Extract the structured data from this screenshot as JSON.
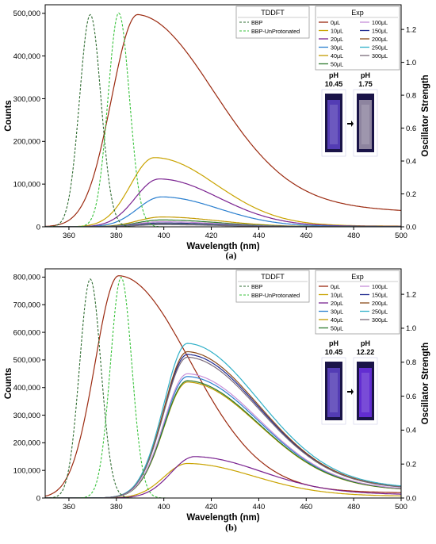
{
  "chart_data": [
    {
      "type": "line",
      "caption": "(a)",
      "xlabel": "Wavelength (nm)",
      "ylabel": "Counts",
      "y2label": "Oscillator Strength",
      "xlim": [
        350,
        500
      ],
      "ylim": [
        0,
        520000
      ],
      "y2lim": [
        0,
        1.35
      ],
      "xticks": [
        360,
        380,
        400,
        420,
        440,
        460,
        480,
        500
      ],
      "yticks": [
        0,
        100000,
        200000,
        300000,
        400000,
        500000
      ],
      "ytick_labels": [
        "0",
        "100,000",
        "200,000",
        "300,000",
        "400,000",
        "500,000"
      ],
      "y2ticks": [
        0,
        0.2,
        0.4,
        0.6,
        0.8,
        1.0,
        1.2
      ],
      "y2tick_labels": [
        "0.0",
        "0.2",
        "0.4",
        "0.6",
        "0.8",
        "1.0",
        "1.2"
      ],
      "legend_tddft_title": "TDDFT",
      "legend_exp_title": "Exp",
      "tddft_series": [
        {
          "name": "BBP",
          "color": "#2e6b30",
          "peak_x": 369,
          "peak_y": 1.29,
          "sigma": 4.5
        },
        {
          "name": "BBP-UnProtonated",
          "color": "#37c23a",
          "peak_x": 381,
          "peak_y": 1.3,
          "sigma": 4.5
        }
      ],
      "exp_series": [
        {
          "name": "0μL",
          "color": "#9b2a10",
          "peak_x": 389,
          "peak_y": 497000,
          "width_left": 11,
          "width_right": 32,
          "tail": 0.15
        },
        {
          "name": "10μL",
          "color": "#c9a300",
          "peak_x": 396,
          "peak_y": 162000,
          "width_left": 10,
          "width_right": 26,
          "tail": 0.02
        },
        {
          "name": "20μL",
          "color": "#7a2290",
          "peak_x": 398,
          "peak_y": 112000,
          "width_left": 10,
          "width_right": 25,
          "tail": 0.02
        },
        {
          "name": "30μL",
          "color": "#2a7fcf",
          "peak_x": 399,
          "peak_y": 70000,
          "width_left": 10,
          "width_right": 24,
          "tail": 0.02
        },
        {
          "name": "40μL",
          "color": "#c39a00",
          "peak_x": 399,
          "peak_y": 23000,
          "width_left": 10,
          "width_right": 24,
          "tail": 0.02
        },
        {
          "name": "50μL",
          "color": "#2d7a2d",
          "peak_x": 399,
          "peak_y": 16000,
          "width_left": 10,
          "width_right": 24,
          "tail": 0.02
        },
        {
          "name": "100μL",
          "color": "#c78fd8",
          "peak_x": 399,
          "peak_y": 12000,
          "width_left": 10,
          "width_right": 24,
          "tail": 0.02
        },
        {
          "name": "150μL",
          "color": "#1f2a8f",
          "peak_x": 399,
          "peak_y": 9000,
          "width_left": 10,
          "width_right": 24,
          "tail": 0.02
        },
        {
          "name": "200μL",
          "color": "#8a4a1a",
          "peak_x": 399,
          "peak_y": 7000,
          "width_left": 10,
          "width_right": 24,
          "tail": 0.02
        },
        {
          "name": "250μL",
          "color": "#30b0c8",
          "peak_x": 399,
          "peak_y": 6000,
          "width_left": 10,
          "width_right": 24,
          "tail": 0.02
        },
        {
          "name": "300μL",
          "color": "#7a6a7a",
          "peak_x": 399,
          "peak_y": 5000,
          "width_left": 10,
          "width_right": 24,
          "tail": 0.02
        }
      ],
      "inset": {
        "left_label": "pH",
        "left_value": "10.45",
        "right_label": "pH",
        "right_value": "1.75",
        "left_glow": "#5a40c0",
        "right_glow": "#9a90a8"
      }
    },
    {
      "type": "line",
      "caption": "(b)",
      "xlabel": "Wavelength (nm)",
      "ylabel": "Counts",
      "y2label": "Oscillator Strength",
      "xlim": [
        350,
        500
      ],
      "ylim": [
        0,
        830000
      ],
      "y2lim": [
        0,
        1.35
      ],
      "xticks": [
        360,
        380,
        400,
        420,
        440,
        460,
        480,
        500
      ],
      "yticks": [
        0,
        100000,
        200000,
        300000,
        400000,
        500000,
        600000,
        700000,
        800000
      ],
      "ytick_labels": [
        "0",
        "100,000",
        "200,000",
        "300,000",
        "400,000",
        "500,000",
        "600,000",
        "700,000",
        "800,000"
      ],
      "y2ticks": [
        0,
        0.2,
        0.4,
        0.6,
        0.8,
        1.0,
        1.2
      ],
      "y2tick_labels": [
        "0.0",
        "0.2",
        "0.4",
        "0.6",
        "0.8",
        "1.0",
        "1.2"
      ],
      "legend_tddft_title": "TDDFT",
      "legend_exp_title": "Exp",
      "tddft_series": [
        {
          "name": "BBP",
          "color": "#2e6b30",
          "peak_x": 369,
          "peak_y": 1.29,
          "sigma": 4.5
        },
        {
          "name": "BBP-UnProtonated",
          "color": "#37c23a",
          "peak_x": 382,
          "peak_y": 1.3,
          "sigma": 4.5
        }
      ],
      "exp_series": [
        {
          "name": "0μL",
          "color": "#9b2a10",
          "peak_x": 381,
          "peak_y": 805000,
          "width_left": 10,
          "width_right": 30,
          "tail": 0.05
        },
        {
          "name": "10μL",
          "color": "#c9a300",
          "peak_x": 410,
          "peak_y": 125000,
          "width_left": 10,
          "width_right": 28,
          "tail": 0.1
        },
        {
          "name": "20μL",
          "color": "#7a2290",
          "peak_x": 413,
          "peak_y": 150000,
          "width_left": 10,
          "width_right": 28,
          "tail": 0.15
        },
        {
          "name": "30μL",
          "color": "#2a7fcf",
          "peak_x": 410,
          "peak_y": 440000,
          "width_left": 10,
          "width_right": 30,
          "tail": 0.12
        },
        {
          "name": "40μL",
          "color": "#c39a00",
          "peak_x": 410,
          "peak_y": 420000,
          "width_left": 10,
          "width_right": 30,
          "tail": 0.12
        },
        {
          "name": "50μL",
          "color": "#2d7a2d",
          "peak_x": 410,
          "peak_y": 425000,
          "width_left": 10,
          "width_right": 30,
          "tail": 0.12
        },
        {
          "name": "100μL",
          "color": "#c78fd8",
          "peak_x": 410,
          "peak_y": 450000,
          "width_left": 10,
          "width_right": 30,
          "tail": 0.12
        },
        {
          "name": "150μL",
          "color": "#1f2a8f",
          "peak_x": 410,
          "peak_y": 520000,
          "width_left": 10,
          "width_right": 30,
          "tail": 0.12
        },
        {
          "name": "200μL",
          "color": "#8a4a1a",
          "peak_x": 410,
          "peak_y": 530000,
          "width_left": 10,
          "width_right": 30,
          "tail": 0.12
        },
        {
          "name": "250μL",
          "color": "#30b0c8",
          "peak_x": 410,
          "peak_y": 560000,
          "width_left": 10,
          "width_right": 30,
          "tail": 0.12
        },
        {
          "name": "300μL",
          "color": "#7a6a7a",
          "peak_x": 410,
          "peak_y": 510000,
          "width_left": 10,
          "width_right": 30,
          "tail": 0.12
        }
      ],
      "inset": {
        "left_label": "pH",
        "left_value": "10.45",
        "right_label": "pH",
        "right_value": "12.22",
        "left_glow": "#5a40c0",
        "right_glow": "#6a30e0"
      }
    }
  ]
}
